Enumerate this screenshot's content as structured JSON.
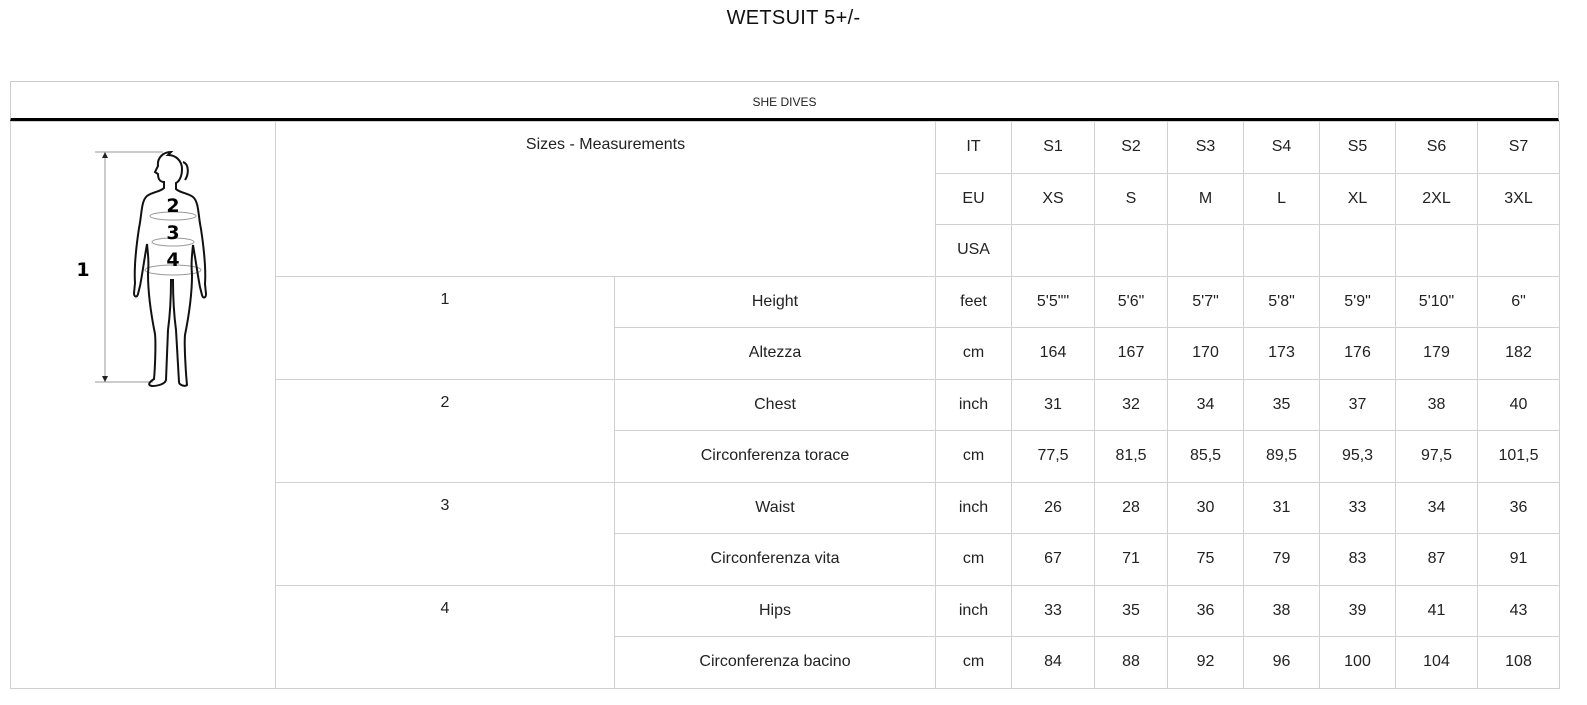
{
  "title": "WETSUIT 5+/-",
  "brand": "SHE DIVES",
  "header": {
    "label": "Sizes - Measurements",
    "rows": [
      {
        "system": "IT",
        "sizes": [
          "S1",
          "S2",
          "S3",
          "S4",
          "S5",
          "S6",
          "S7"
        ]
      },
      {
        "system": "EU",
        "sizes": [
          "XS",
          "S",
          "M",
          "L",
          "XL",
          "2XL",
          "3XL"
        ]
      },
      {
        "system": "USA",
        "sizes": [
          "",
          "",
          "",
          "",
          "",
          "",
          ""
        ]
      }
    ]
  },
  "figure": {
    "labels": [
      "1",
      "2",
      "3",
      "4"
    ]
  },
  "measurements": [
    {
      "num": "1",
      "rows": [
        {
          "name": "Height",
          "unit": "feet",
          "values": [
            "5'5\"\"",
            "5'6\"",
            "5'7\"",
            "5'8\"",
            "5'9\"",
            "5'10\"",
            "6\""
          ]
        },
        {
          "name": "Altezza",
          "unit": "cm",
          "values": [
            "164",
            "167",
            "170",
            "173",
            "176",
            "179",
            "182"
          ]
        }
      ]
    },
    {
      "num": "2",
      "rows": [
        {
          "name": "Chest",
          "unit": "inch",
          "values": [
            "31",
            "32",
            "34",
            "35",
            "37",
            "38",
            "40"
          ]
        },
        {
          "name": "Circonferenza torace",
          "unit": "cm",
          "values": [
            "77,5",
            "81,5",
            "85,5",
            "89,5",
            "95,3",
            "97,5",
            "101,5"
          ]
        }
      ]
    },
    {
      "num": "3",
      "rows": [
        {
          "name": "Waist",
          "unit": "inch",
          "values": [
            "26",
            "28",
            "30",
            "31",
            "33",
            "34",
            "36"
          ]
        },
        {
          "name": "Circonferenza vita",
          "unit": "cm",
          "values": [
            "67",
            "71",
            "75",
            "79",
            "83",
            "87",
            "91"
          ]
        }
      ]
    },
    {
      "num": "4",
      "rows": [
        {
          "name": "Hips",
          "unit": "inch",
          "values": [
            "33",
            "35",
            "36",
            "38",
            "39",
            "41",
            "43"
          ]
        },
        {
          "name": "Circonferenza bacino",
          "unit": "cm",
          "values": [
            "84",
            "88",
            "92",
            "96",
            "100",
            "104",
            "108"
          ]
        }
      ]
    }
  ]
}
